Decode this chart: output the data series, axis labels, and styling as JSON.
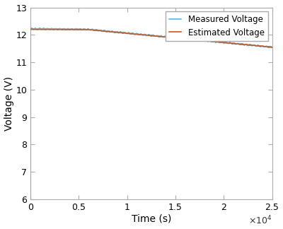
{
  "title": "",
  "xlabel": "Time (s)",
  "ylabel": "Voltage (V)",
  "xlim": [
    0,
    25000
  ],
  "ylim": [
    6,
    13
  ],
  "yticks": [
    6,
    7,
    8,
    9,
    10,
    11,
    12,
    13
  ],
  "xticks": [
    0,
    5000,
    10000,
    15000,
    20000,
    25000
  ],
  "xtick_labels": [
    "0",
    "0.5",
    "1",
    "1.5",
    "2",
    "2.5"
  ],
  "x_exp_label": "×10⁴",
  "measured_color": "#4DBEEE",
  "estimated_color": "#D95319",
  "legend_labels": [
    "Measured Voltage",
    "Estimated Voltage"
  ],
  "background_color": "#FFFFFF",
  "spine_color": "#AAAAAA",
  "n_points": 2500,
  "meas_start_y": 12.22,
  "meas_end_y": 11.55,
  "est_start_y": 12.18,
  "est_end_y": 11.55
}
